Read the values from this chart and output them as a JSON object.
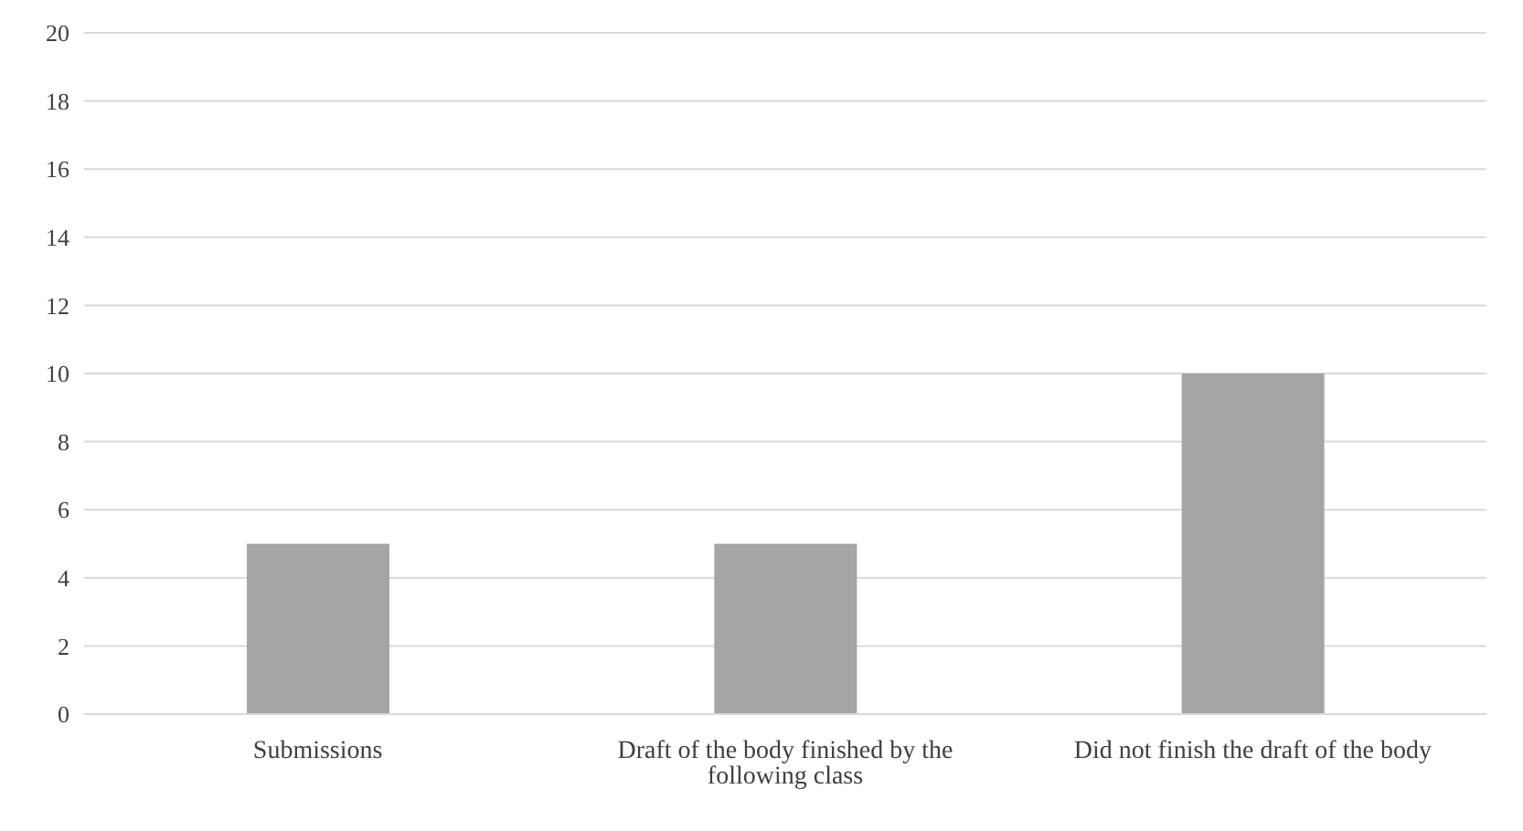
{
  "chart_data": {
    "type": "bar",
    "categories": [
      "Submissions",
      "Draft of the body finished by the following class",
      "Did not finish the draft of the body"
    ],
    "values": [
      5,
      5,
      10
    ],
    "color": "#a5a5a5",
    "ylim": [
      0,
      20
    ],
    "yticks": [
      0,
      2,
      4,
      6,
      8,
      10,
      12,
      14,
      16,
      18,
      20
    ],
    "grid": "y"
  }
}
